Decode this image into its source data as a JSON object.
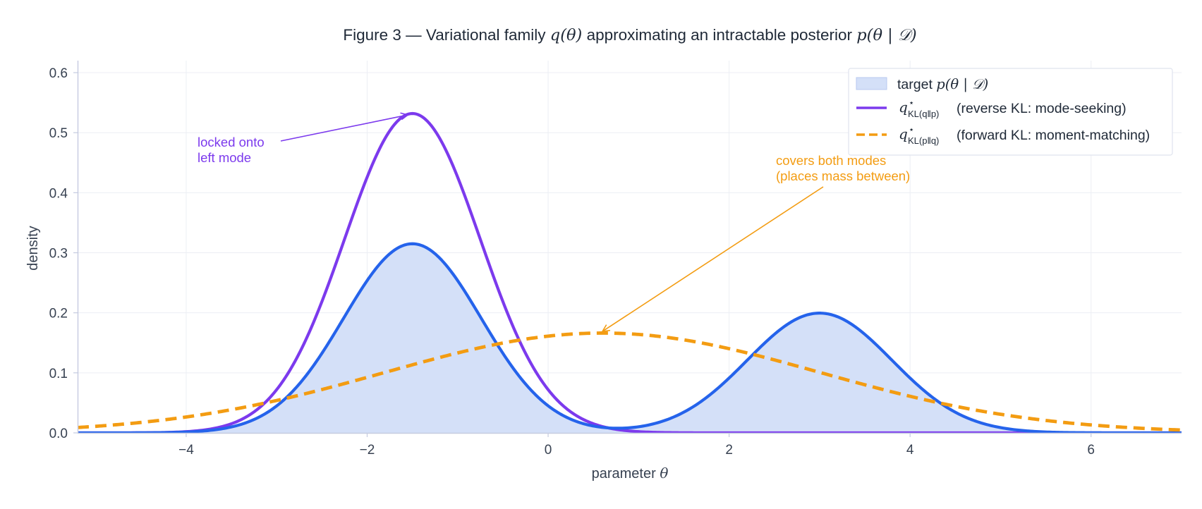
{
  "chart_data": {
    "type": "line",
    "title": {
      "prefix": "Figure 3 — Variational family ",
      "q_symbol": "q(θ)",
      "middle": " approximating an intractable posterior ",
      "p_symbol": "p(θ | 𝒟)"
    },
    "xlabel": {
      "text": "parameter ",
      "symbol": "θ"
    },
    "ylabel": "density",
    "xlim": [
      -5.2,
      7.0
    ],
    "ylim": [
      0.0,
      0.62
    ],
    "x_ticks": [
      -4,
      -2,
      0,
      2,
      4,
      6
    ],
    "x_tick_labels": [
      "−4",
      "−2",
      "0",
      "2",
      "4",
      "6"
    ],
    "y_ticks": [
      0.0,
      0.1,
      0.2,
      0.3,
      0.4,
      0.5,
      0.6
    ],
    "y_tick_labels": [
      "0.0",
      "0.1",
      "0.2",
      "0.3",
      "0.4",
      "0.5",
      "0.6"
    ],
    "grid": true,
    "legend_position": "top-right",
    "series": [
      {
        "id": "target",
        "style": "filled-line",
        "color": "#2563eb",
        "fill": "#d4e0f8",
        "legend": {
          "text": "target ",
          "symbol": "p(θ | 𝒟)"
        },
        "mixture": [
          {
            "weight": 0.6,
            "mean": -1.5,
            "sd": 0.76
          },
          {
            "weight": 0.4,
            "mean": 3.0,
            "sd": 0.8
          }
        ],
        "peaks": [
          {
            "x": -1.5,
            "y": 0.314
          },
          {
            "x": 3.0,
            "y": 0.2
          }
        ]
      },
      {
        "id": "reverse-kl",
        "style": "solid",
        "color": "#7c3aed",
        "legend": {
          "symbol": "q",
          "superscript": "⋆",
          "subscript": "KL(q‖p)",
          "text": "(reverse KL: mode-seeking)"
        },
        "mixture": [
          {
            "weight": 1.0,
            "mean": -1.5,
            "sd": 0.75
          }
        ],
        "peaks": [
          {
            "x": -1.5,
            "y": 0.532
          }
        ]
      },
      {
        "id": "forward-kl",
        "style": "dashed",
        "color": "#f39c12",
        "legend": {
          "symbol": "q",
          "superscript": "⋆",
          "subscript": "KL(p‖q)",
          "text": "(forward KL: moment-matching)"
        },
        "mixture": [
          {
            "weight": 1.0,
            "mean": 0.6,
            "sd": 2.4
          }
        ],
        "peaks": [
          {
            "x": 0.6,
            "y": 0.166
          }
        ]
      }
    ],
    "annotations": [
      {
        "id": "annotation-left-mode",
        "lines": [
          "locked onto",
          "left mode"
        ],
        "color": "#7c3aed",
        "arrow_to": {
          "x": -1.55,
          "y": 0.532
        }
      },
      {
        "id": "annotation-both-modes",
        "lines": [
          "covers both modes",
          "(places mass between)"
        ],
        "color": "#f39c12",
        "arrow_to": {
          "x": 0.6,
          "y": 0.169
        }
      }
    ]
  }
}
